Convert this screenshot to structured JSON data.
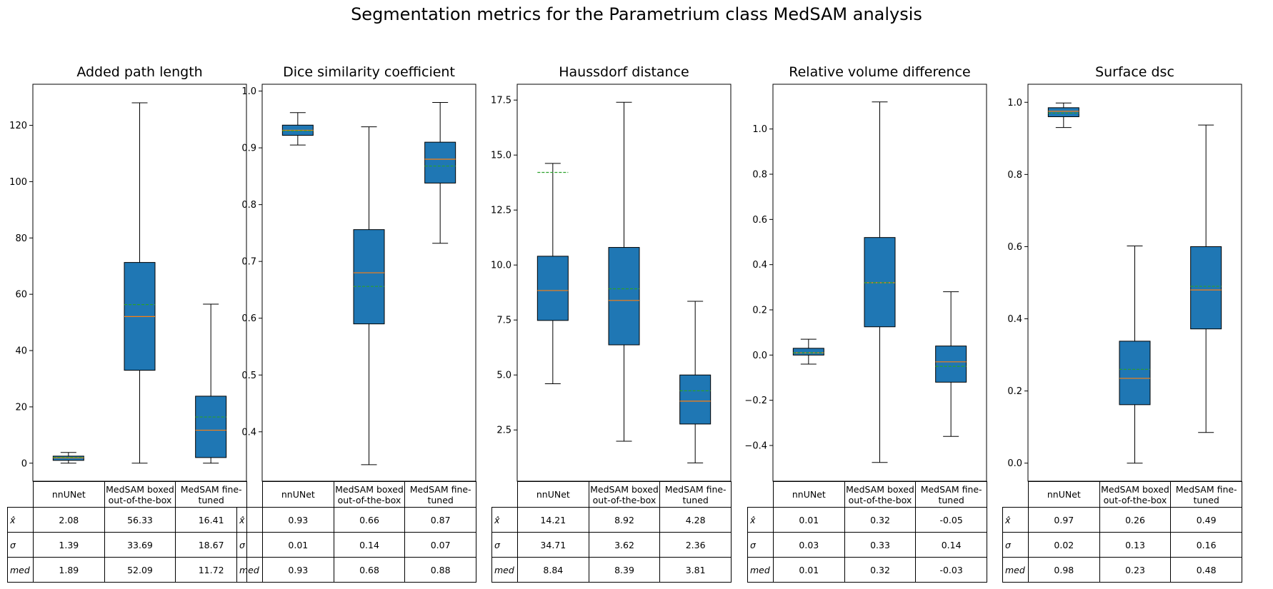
{
  "title": "Segmentation metrics for the Parametrium class MedSAM analysis",
  "colors": {
    "box": "#1f77b4",
    "median": "#ff7f0e",
    "mean": "#2ca02c"
  },
  "table_columns": [
    "nnUNet",
    "MedSAM boxed out-of-the-box",
    "MedSAM fine-tuned"
  ],
  "table_row_labels": [
    "x̂",
    "σ",
    "med"
  ],
  "chart_data": [
    {
      "type": "box",
      "title": "Added path length",
      "categories": [
        "nnUNet",
        "MedSAM boxed out-of-the-box",
        "MedSAM fine-tuned"
      ],
      "ylim": [
        -6.4,
        134.6
      ],
      "yticks": [
        0,
        20,
        40,
        60,
        80,
        100,
        120
      ],
      "ytick_labels": [
        "0",
        "20",
        "40",
        "60",
        "80",
        "100",
        "120"
      ],
      "boxes": [
        {
          "whislo": 0.0,
          "q1": 1.0,
          "med": 1.89,
          "q3": 2.5,
          "whishi": 3.8,
          "mean": 2.08
        },
        {
          "whislo": 0.0,
          "q1": 33.0,
          "med": 52.09,
          "q3": 71.3,
          "whishi": 128.0,
          "mean": 56.33
        },
        {
          "whislo": 0.0,
          "q1": 2.0,
          "med": 11.72,
          "q3": 23.8,
          "whishi": 56.5,
          "mean": 16.41
        }
      ],
      "table": [
        [
          "2.08",
          "56.33",
          "16.41"
        ],
        [
          "1.39",
          "33.69",
          "18.67"
        ],
        [
          "1.89",
          "52.09",
          "11.72"
        ]
      ]
    },
    {
      "type": "box",
      "title": "Dice similarity coefficient",
      "categories": [
        "nnUNet",
        "MedSAM boxed out-of-the-box",
        "MedSAM fine-tuned"
      ],
      "ylim": [
        0.313,
        1.012
      ],
      "yticks": [
        0.4,
        0.5,
        0.6,
        0.7,
        0.8,
        0.9,
        1.0
      ],
      "ytick_labels": [
        "0.4",
        "0.5",
        "0.6",
        "0.7",
        "0.8",
        "0.9",
        "1.0"
      ],
      "boxes": [
        {
          "whislo": 0.905,
          "q1": 0.922,
          "med": 0.931,
          "q3": 0.94,
          "whishi": 0.962,
          "mean": 0.93
        },
        {
          "whislo": 0.342,
          "q1": 0.59,
          "med": 0.68,
          "q3": 0.756,
          "whishi": 0.937,
          "mean": 0.656
        },
        {
          "whislo": 0.732,
          "q1": 0.838,
          "med": 0.88,
          "q3": 0.91,
          "whishi": 0.98,
          "mean": 0.868
        }
      ],
      "table": [
        [
          "0.93",
          "0.66",
          "0.87"
        ],
        [
          "0.01",
          "0.14",
          "0.07"
        ],
        [
          "0.93",
          "0.68",
          "0.88"
        ]
      ]
    },
    {
      "type": "box",
      "title": "Haussdorf distance",
      "categories": [
        "nnUNet",
        "MedSAM boxed out-of-the-box",
        "MedSAM fine-tuned"
      ],
      "ylim": [
        0.17,
        18.22
      ],
      "yticks": [
        2.5,
        5.0,
        7.5,
        10.0,
        12.5,
        15.0,
        17.5
      ],
      "ytick_labels": [
        "2.5",
        "5.0",
        "7.5",
        "10.0",
        "12.5",
        "15.0",
        "17.5"
      ],
      "boxes": [
        {
          "whislo": 4.6,
          "q1": 7.48,
          "med": 8.84,
          "q3": 10.4,
          "whishi": 14.62,
          "mean": 14.21
        },
        {
          "whislo": 1.99,
          "q1": 6.37,
          "med": 8.39,
          "q3": 10.8,
          "whishi": 17.4,
          "mean": 8.92
        },
        {
          "whislo": 1.0,
          "q1": 2.77,
          "med": 3.81,
          "q3": 5.0,
          "whishi": 8.35,
          "mean": 4.28
        }
      ],
      "table": [
        [
          "14.21",
          "8.92",
          "4.28"
        ],
        [
          "34.71",
          "3.62",
          "2.36"
        ],
        [
          "8.84",
          "8.39",
          "3.81"
        ]
      ]
    },
    {
      "type": "box",
      "title": "Relative volume difference",
      "categories": [
        "nnUNet",
        "MedSAM boxed out-of-the-box",
        "MedSAM fine-tuned"
      ],
      "ylim": [
        -0.558,
        1.198
      ],
      "yticks": [
        -0.4,
        -0.2,
        0.0,
        0.2,
        0.4,
        0.6,
        0.8,
        1.0
      ],
      "ytick_labels": [
        "−0.4",
        "−0.2",
        "0.0",
        "0.2",
        "0.4",
        "0.6",
        "0.8",
        "1.0"
      ],
      "boxes": [
        {
          "whislo": -0.04,
          "q1": 0.0,
          "med": 0.01,
          "q3": 0.03,
          "whishi": 0.07,
          "mean": 0.01
        },
        {
          "whislo": -0.475,
          "q1": 0.125,
          "med": 0.32,
          "q3": 0.52,
          "whishi": 1.12,
          "mean": 0.32
        },
        {
          "whislo": -0.36,
          "q1": -0.12,
          "med": -0.03,
          "q3": 0.04,
          "whishi": 0.28,
          "mean": -0.05
        }
      ],
      "table": [
        [
          "0.01",
          "0.32",
          "-0.05"
        ],
        [
          "0.03",
          "0.33",
          "0.14"
        ],
        [
          "0.01",
          "0.32",
          "-0.03"
        ]
      ]
    },
    {
      "type": "box",
      "title": "Surface dsc",
      "categories": [
        "nnUNet",
        "MedSAM boxed out-of-the-box",
        "MedSAM fine-tuned"
      ],
      "ylim": [
        -0.05,
        1.05
      ],
      "yticks": [
        0.0,
        0.2,
        0.4,
        0.6,
        0.8,
        1.0
      ],
      "ytick_labels": [
        "0.0",
        "0.2",
        "0.4",
        "0.6",
        "0.8",
        "1.0"
      ],
      "boxes": [
        {
          "whislo": 0.93,
          "q1": 0.96,
          "med": 0.975,
          "q3": 0.985,
          "whishi": 0.998,
          "mean": 0.97
        },
        {
          "whislo": 0.0,
          "q1": 0.162,
          "med": 0.235,
          "q3": 0.338,
          "whishi": 0.602,
          "mean": 0.26
        },
        {
          "whislo": 0.085,
          "q1": 0.372,
          "med": 0.48,
          "q3": 0.6,
          "whishi": 0.937,
          "mean": 0.49
        }
      ],
      "table": [
        [
          "0.97",
          "0.26",
          "0.49"
        ],
        [
          "0.02",
          "0.13",
          "0.16"
        ],
        [
          "0.98",
          "0.23",
          "0.48"
        ]
      ]
    }
  ]
}
